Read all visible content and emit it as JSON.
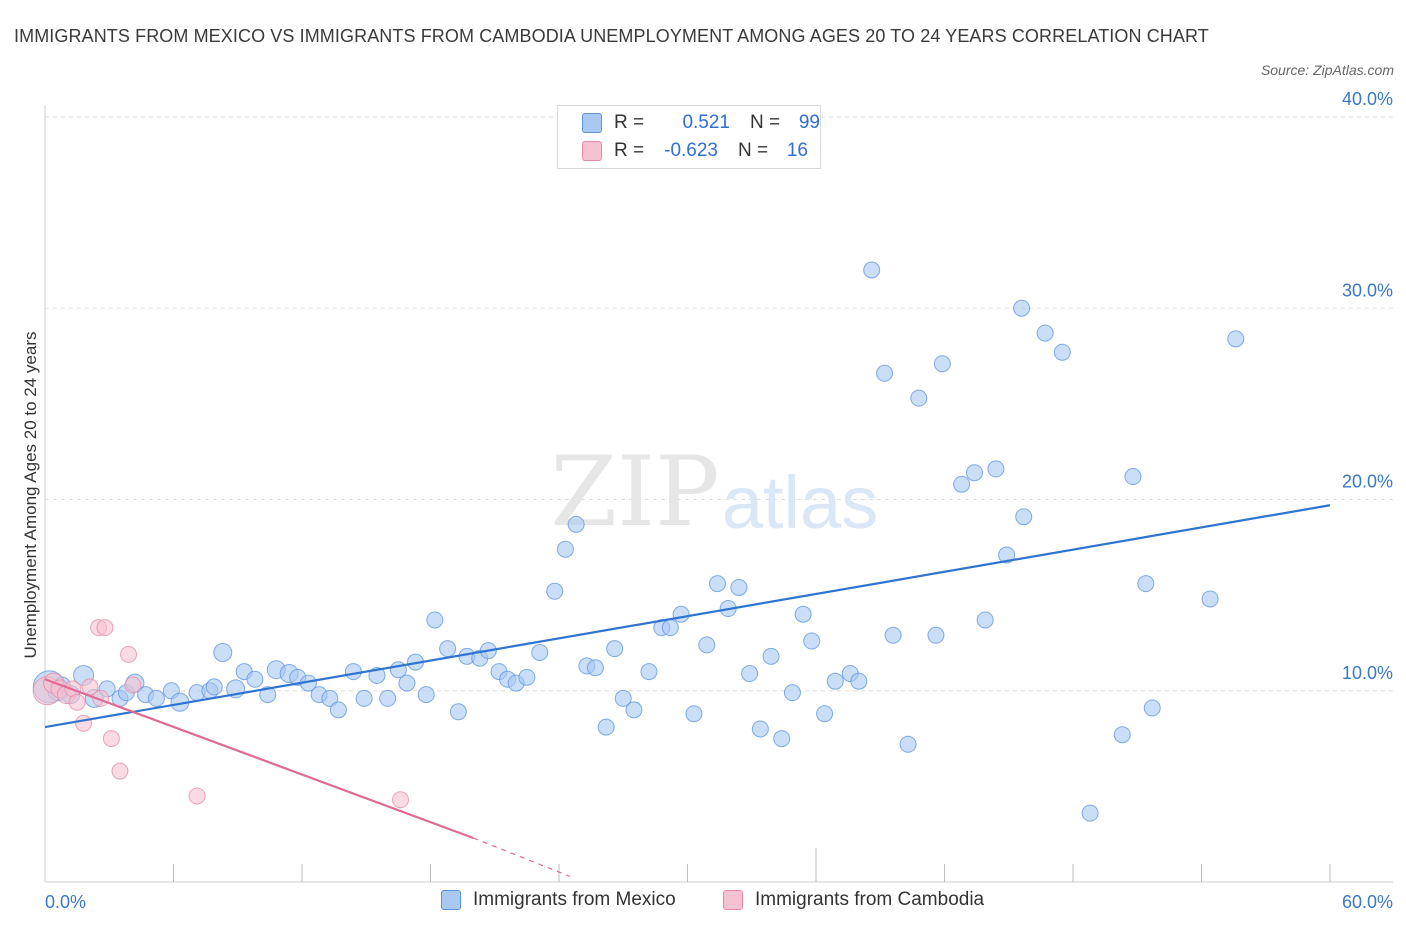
{
  "title": "IMMIGRANTS FROM MEXICO VS IMMIGRANTS FROM CAMBODIA UNEMPLOYMENT AMONG AGES 20 TO 24 YEARS CORRELATION CHART",
  "source": "Source: ZipAtlas.com",
  "watermark": {
    "zip": "ZIP",
    "atlas": "atlas"
  },
  "colors": {
    "mexico_fill": "#a9c8f2",
    "mexico_stroke": "#5b93dd",
    "mexico_line": "#2f74d0",
    "cambodia_fill": "#f6c1d0",
    "cambodia_stroke": "#e48aa6",
    "cambodia_line": "#e06a94",
    "grid": "#dddddd",
    "tick_label": "#3a78c9"
  },
  "stats": [
    {
      "r_label": "R =",
      "r_value": "0.521",
      "n_label": "N =",
      "n_value": "99"
    },
    {
      "r_label": "R =",
      "r_value": "-0.623",
      "n_label": "N =",
      "n_value": "16"
    }
  ],
  "legend": [
    {
      "label": "Immigrants from Mexico"
    },
    {
      "label": "Immigrants from Cambodia"
    }
  ],
  "chart_data": {
    "type": "scatter",
    "xlabel": "",
    "ylabel": "Unemployment Among Ages 20 to 24 years",
    "xlim": [
      0,
      60
    ],
    "ylim": [
      0,
      40
    ],
    "x_tick_labels": [
      "0.0%",
      "60.0%"
    ],
    "y_ticks": [
      10,
      20,
      30,
      40
    ],
    "y_tick_labels": [
      "10.0%",
      "20.0%",
      "30.0%",
      "40.0%"
    ],
    "grid": true,
    "series": [
      {
        "name": "Immigrants from Mexico",
        "trend": {
          "x": [
            0,
            60
          ],
          "y": [
            8.1,
            19.7
          ]
        },
        "points": [
          [
            0.2,
            10.2,
            16
          ],
          [
            0.6,
            10.0,
            10
          ],
          [
            0.8,
            10.3,
            8
          ],
          [
            1.2,
            9.8,
            9
          ],
          [
            1.8,
            10.8,
            10
          ],
          [
            2.3,
            9.6,
            9
          ],
          [
            2.9,
            10.1,
            8
          ],
          [
            3.5,
            9.6,
            8
          ],
          [
            3.8,
            9.9,
            8
          ],
          [
            4.2,
            10.4,
            9
          ],
          [
            4.7,
            9.8,
            8
          ],
          [
            5.2,
            9.6,
            8
          ],
          [
            5.9,
            10.0,
            8
          ],
          [
            6.3,
            9.4,
            9
          ],
          [
            7.1,
            9.9,
            8
          ],
          [
            7.7,
            10.0,
            8
          ],
          [
            7.9,
            10.2,
            8
          ],
          [
            8.3,
            12.0,
            9
          ],
          [
            8.9,
            10.1,
            9
          ],
          [
            9.3,
            11.0,
            8
          ],
          [
            9.8,
            10.6,
            8
          ],
          [
            10.4,
            9.8,
            8
          ],
          [
            10.8,
            11.1,
            9
          ],
          [
            11.4,
            10.9,
            9
          ],
          [
            11.8,
            10.7,
            8
          ],
          [
            12.3,
            10.4,
            8
          ],
          [
            12.8,
            9.8,
            8
          ],
          [
            13.3,
            9.6,
            8
          ],
          [
            13.7,
            9.0,
            8
          ],
          [
            14.4,
            11.0,
            8
          ],
          [
            14.9,
            9.6,
            8
          ],
          [
            15.5,
            10.8,
            8
          ],
          [
            16.0,
            9.6,
            8
          ],
          [
            16.5,
            11.1,
            8
          ],
          [
            16.9,
            10.4,
            8
          ],
          [
            17.3,
            11.5,
            8
          ],
          [
            17.8,
            9.8,
            8
          ],
          [
            18.2,
            13.7,
            8
          ],
          [
            18.8,
            12.2,
            8
          ],
          [
            19.3,
            8.9,
            8
          ],
          [
            19.7,
            11.8,
            8
          ],
          [
            20.3,
            11.7,
            8
          ],
          [
            20.7,
            12.1,
            8
          ],
          [
            21.2,
            11.0,
            8
          ],
          [
            21.6,
            10.6,
            8
          ],
          [
            22.0,
            10.4,
            8
          ],
          [
            22.5,
            10.7,
            8
          ],
          [
            23.1,
            12.0,
            8
          ],
          [
            23.8,
            15.2,
            8
          ],
          [
            24.3,
            17.4,
            8
          ],
          [
            24.8,
            18.7,
            8
          ],
          [
            25.3,
            11.3,
            8
          ],
          [
            25.7,
            11.2,
            8
          ],
          [
            26.2,
            8.1,
            8
          ],
          [
            26.6,
            12.2,
            8
          ],
          [
            27.0,
            9.6,
            8
          ],
          [
            27.5,
            9.0,
            8
          ],
          [
            28.2,
            11.0,
            8
          ],
          [
            28.8,
            13.3,
            8
          ],
          [
            29.2,
            13.3,
            8
          ],
          [
            29.7,
            14.0,
            8
          ],
          [
            30.3,
            8.8,
            8
          ],
          [
            30.9,
            12.4,
            8
          ],
          [
            31.4,
            15.6,
            8
          ],
          [
            31.9,
            14.3,
            8
          ],
          [
            32.4,
            15.4,
            8
          ],
          [
            32.9,
            10.9,
            8
          ],
          [
            33.4,
            8.0,
            8
          ],
          [
            33.9,
            11.8,
            8
          ],
          [
            34.4,
            7.5,
            8
          ],
          [
            34.9,
            9.9,
            8
          ],
          [
            35.4,
            14.0,
            8
          ],
          [
            35.8,
            12.6,
            8
          ],
          [
            36.4,
            8.8,
            8
          ],
          [
            36.9,
            10.5,
            8
          ],
          [
            37.6,
            10.9,
            8
          ],
          [
            38.0,
            10.5,
            8
          ],
          [
            38.6,
            32.0,
            8
          ],
          [
            39.2,
            26.6,
            8
          ],
          [
            39.6,
            12.9,
            8
          ],
          [
            40.3,
            7.2,
            8
          ],
          [
            40.8,
            25.3,
            8
          ],
          [
            41.6,
            12.9,
            8
          ],
          [
            41.9,
            27.1,
            8
          ],
          [
            42.8,
            20.8,
            8
          ],
          [
            43.4,
            21.4,
            8
          ],
          [
            43.9,
            13.7,
            8
          ],
          [
            44.4,
            21.6,
            8
          ],
          [
            44.9,
            17.1,
            8
          ],
          [
            45.7,
            19.1,
            8
          ],
          [
            45.6,
            30.0,
            8
          ],
          [
            46.7,
            28.7,
            8
          ],
          [
            47.5,
            27.7,
            8
          ],
          [
            48.8,
            3.6,
            8
          ],
          [
            50.3,
            7.7,
            8
          ],
          [
            50.8,
            21.2,
            8
          ],
          [
            51.4,
            15.6,
            8
          ],
          [
            51.7,
            9.1,
            8
          ],
          [
            54.4,
            14.8,
            8
          ],
          [
            55.6,
            28.4,
            8
          ]
        ]
      },
      {
        "name": "Immigrants from Cambodia",
        "trend": {
          "x": [
            0,
            20
          ],
          "y": [
            10.6,
            2.3
          ]
        },
        "trend_dashed": {
          "x": [
            20,
            24.5
          ],
          "y": [
            2.3,
            0.3
          ]
        },
        "points": [
          [
            0.1,
            10.0,
            14
          ],
          [
            0.4,
            10.4,
            10
          ],
          [
            0.7,
            10.1,
            9
          ],
          [
            1.0,
            9.8,
            9
          ],
          [
            1.3,
            10.1,
            8
          ],
          [
            1.5,
            9.4,
            8
          ],
          [
            1.8,
            8.3,
            8
          ],
          [
            2.1,
            10.2,
            8
          ],
          [
            2.5,
            13.3,
            8
          ],
          [
            2.6,
            9.6,
            8
          ],
          [
            2.8,
            13.3,
            8
          ],
          [
            3.1,
            7.5,
            8
          ],
          [
            3.5,
            5.8,
            8
          ],
          [
            3.9,
            11.9,
            8
          ],
          [
            4.1,
            10.3,
            8
          ],
          [
            7.1,
            4.5,
            8
          ],
          [
            16.6,
            4.3,
            8
          ]
        ]
      }
    ]
  }
}
